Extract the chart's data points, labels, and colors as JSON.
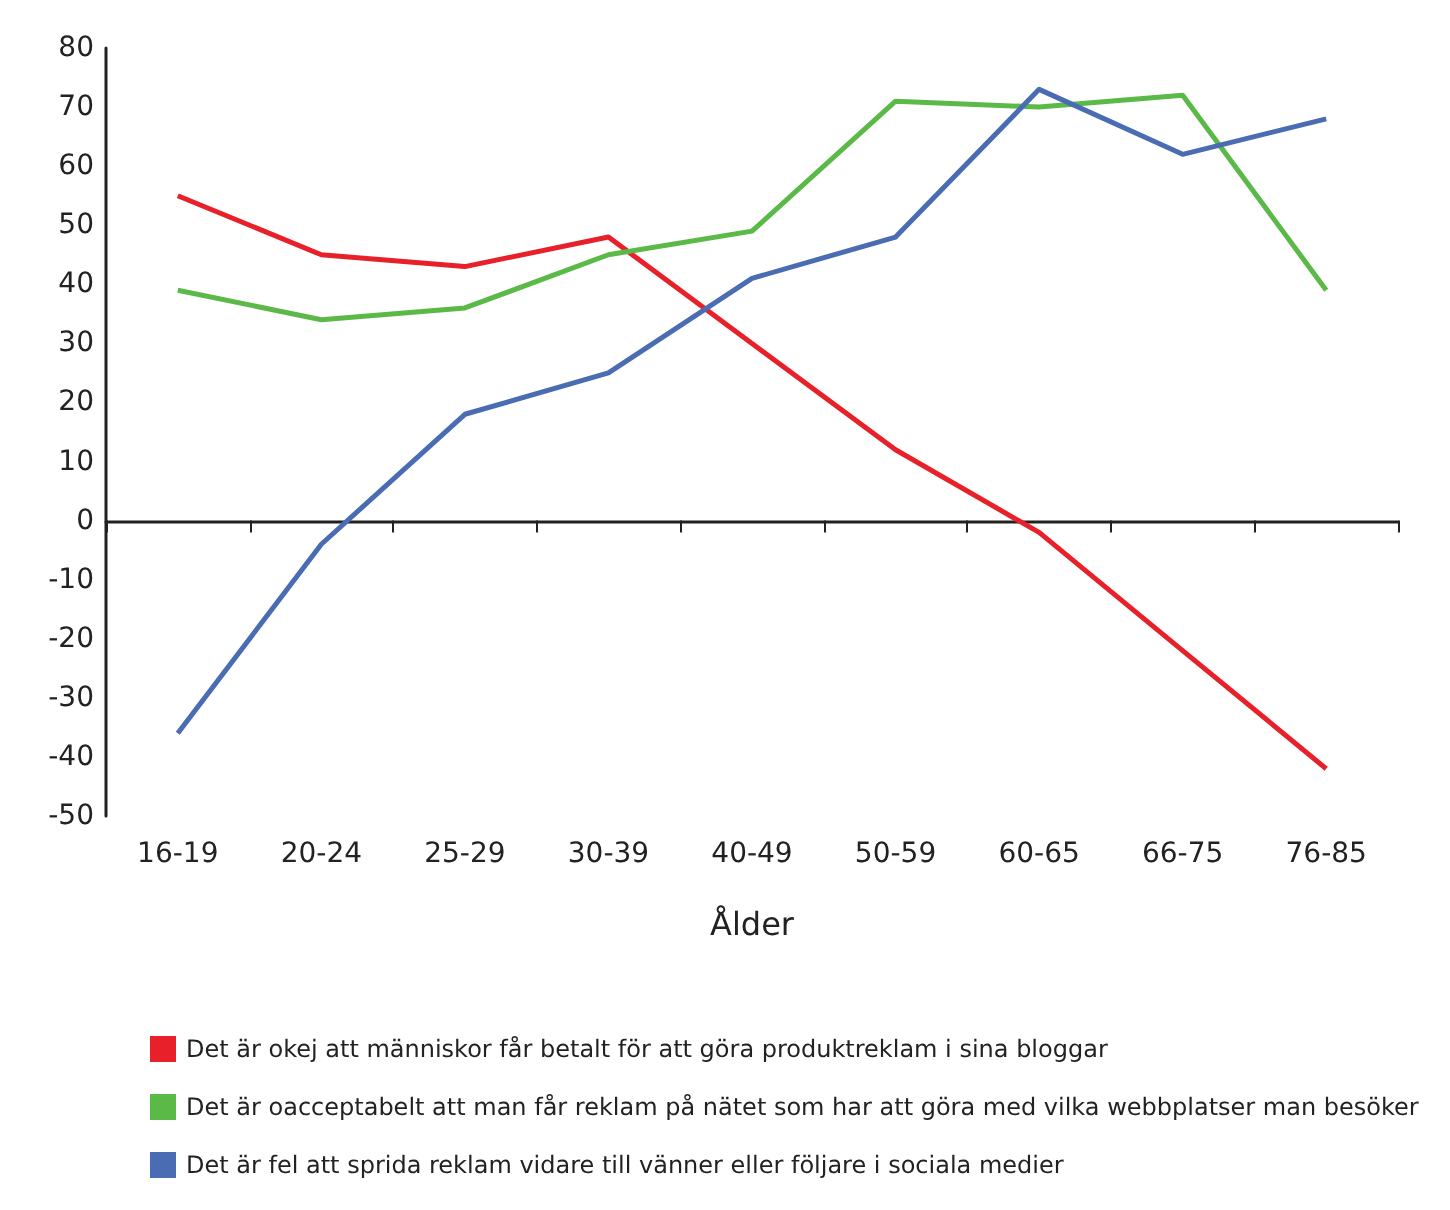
{
  "chart_data": {
    "type": "line",
    "xlabel": "Ålder",
    "categories": [
      "16-19",
      "20-24",
      "25-29",
      "30-39",
      "40-49",
      "50-59",
      "60-65",
      "66-75",
      "76-85"
    ],
    "series": [
      {
        "name": "Det är okej att människor får betalt för att göra produktreklam i sina bloggar",
        "color": "#e8202a",
        "values": [
          55,
          45,
          43,
          48,
          30,
          12,
          -2,
          -22,
          -42
        ]
      },
      {
        "name": "Det är oacceptabelt att man får reklam på nätet som har att göra med vilka webbplatser man besöker",
        "color": "#5bba47",
        "values": [
          39,
          34,
          36,
          45,
          49,
          71,
          70,
          72,
          39
        ]
      },
      {
        "name": "Det är fel att sprida reklam vidare till vänner eller följare i sociala medier",
        "color": "#4a6cb3",
        "values": [
          -36,
          -4,
          18,
          25,
          41,
          48,
          73,
          62,
          68
        ]
      }
    ],
    "ylim": [
      -50,
      80
    ],
    "yticks": [
      -50,
      -40,
      -30,
      -20,
      -10,
      0,
      10,
      20,
      30,
      40,
      50,
      60,
      70,
      80
    ],
    "legend": "bottom",
    "marker": "none",
    "line_style": "solid"
  }
}
